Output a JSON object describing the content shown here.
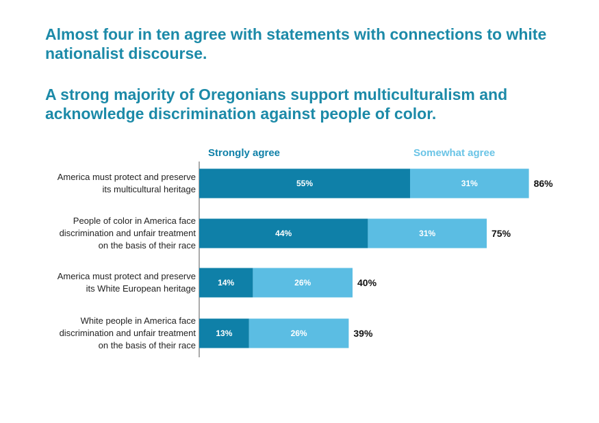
{
  "headlines": [
    "Almost four in ten agree with statements with connections to white nationalist discourse.",
    "A strong majority of Oregonians support multiculturalism and acknowledge discrimination against people of color."
  ],
  "colors": {
    "strongly_agree": "#0f80a8",
    "somewhat_agree": "#5bbde3",
    "headline": "#1c8aa8",
    "axis": "#555555"
  },
  "chart_data": {
    "type": "bar",
    "orientation": "horizontal",
    "stacked": true,
    "legend_position": "top",
    "categories": [
      [
        "America must protect and preserve",
        "its multicultural heritage"
      ],
      [
        "People of color in America face",
        "discrimination and unfair treatment",
        "on the basis of their race"
      ],
      [
        "America must protect and preserve",
        "its White European heritage"
      ],
      [
        "White people in America face",
        "discrimination and unfair treatment",
        "on the basis of their race"
      ]
    ],
    "series": [
      {
        "name": "Strongly agree",
        "values": [
          55,
          44,
          14,
          13
        ]
      },
      {
        "name": "Somewhat agree",
        "values": [
          31,
          31,
          26,
          26
        ]
      }
    ],
    "totals": [
      86,
      75,
      40,
      39
    ],
    "unit": "%",
    "xlim": [
      0,
      100
    ]
  }
}
